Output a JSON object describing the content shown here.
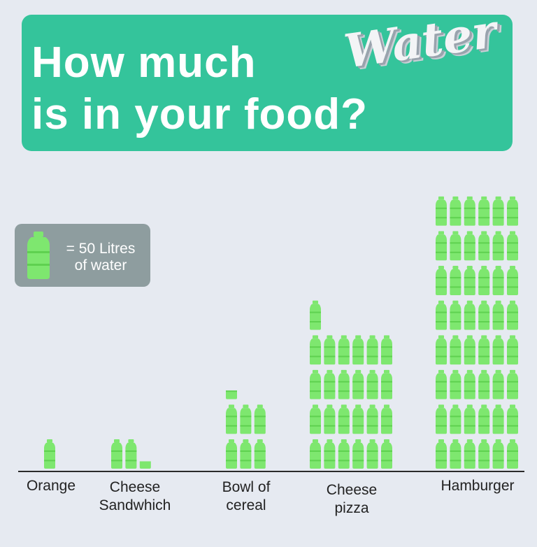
{
  "title": {
    "line1": "How much",
    "accent": "Water",
    "line2": "is in your food?"
  },
  "legend": {
    "icon": "water-bottle-icon",
    "text": "= 50 Litres\nof water",
    "litres_per_bottle": 50
  },
  "colors": {
    "background": "#e6eaf1",
    "title_box": "#34c49b",
    "legend_box": "#8e9d9f",
    "bottle": "#7ee76f",
    "bottle_band": "#5fd150"
  },
  "chart_data": {
    "type": "bar",
    "unit": "bottles",
    "categories": [
      "Orange",
      "Cheese\nSandwhich",
      "Bowl of\ncereal",
      "Cheese\npizza",
      "Hamburger"
    ],
    "values": [
      1,
      2.25,
      6.3,
      25,
      48
    ],
    "columns_per_row": [
      1,
      3,
      3,
      6,
      6
    ]
  }
}
